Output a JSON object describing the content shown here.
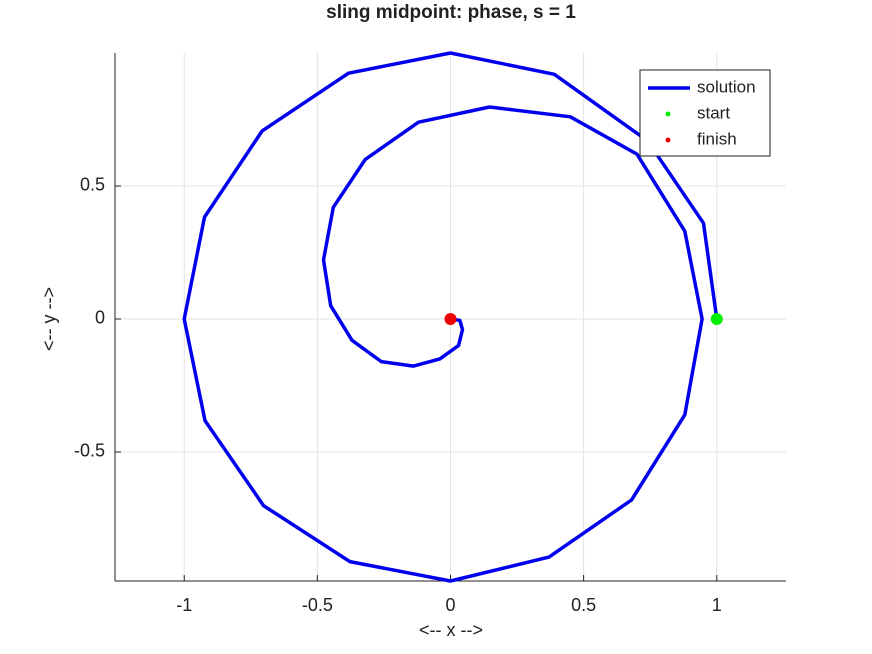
{
  "chart_data": {
    "type": "line",
    "title": "sling midpoint: phase, s = 1",
    "xlabel": "<-- x -->",
    "ylabel": "<-- y -->",
    "xlim": [
      -1.26,
      1.26
    ],
    "ylim": [
      -0.985,
      1
    ],
    "xticks": [
      -1,
      -0.5,
      0,
      0.5,
      1
    ],
    "yticks": [
      -0.5,
      0,
      0.5
    ],
    "grid": true,
    "legend": "northeast",
    "series": [
      {
        "name": "solution",
        "color": "#0000ee",
        "marker": "none",
        "x": [
          1,
          0.95,
          0.74,
          0.39,
          0,
          -0.383,
          -0.707,
          -0.924,
          -1,
          -0.922,
          -0.702,
          -0.378,
          0,
          0.37,
          0.68,
          0.88,
          0.945,
          0.88,
          0.7,
          0.45,
          0.147,
          -0.12,
          -0.32,
          -0.44,
          -0.477,
          -0.45,
          -0.37,
          -0.26,
          -0.139,
          -0.04,
          0.03,
          0.045,
          0.035,
          0
        ],
        "y": [
          0,
          0.36,
          0.67,
          0.92,
          1,
          0.924,
          0.707,
          0.383,
          0,
          -0.382,
          -0.702,
          -0.912,
          -0.985,
          -0.895,
          -0.68,
          -0.36,
          0,
          0.33,
          0.62,
          0.76,
          0.797,
          0.74,
          0.6,
          0.42,
          0.222,
          0.05,
          -0.08,
          -0.16,
          -0.177,
          -0.15,
          -0.1,
          -0.04,
          -0.005,
          0
        ]
      },
      {
        "name": "start",
        "color": "#00ee00",
        "marker": "dot",
        "x": [
          1
        ],
        "y": [
          0
        ]
      },
      {
        "name": "finish",
        "color": "#ee0000",
        "marker": "dot",
        "x": [
          0
        ],
        "y": [
          0
        ]
      }
    ]
  }
}
